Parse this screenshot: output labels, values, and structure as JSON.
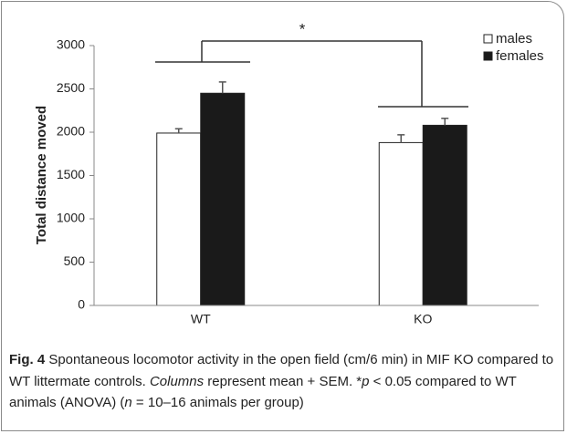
{
  "chart_data": {
    "type": "bar",
    "categories": [
      "WT",
      "KO"
    ],
    "series": [
      {
        "name": "males",
        "color": "#ffffff",
        "values": [
          1990,
          1880
        ],
        "errors": [
          50,
          90
        ]
      },
      {
        "name": "females",
        "color": "#1a1a1a",
        "values": [
          2450,
          2080
        ],
        "errors": [
          130,
          80
        ]
      }
    ],
    "ylabel": "Total distance moved",
    "ylim": [
      0,
      3000
    ],
    "yticks": [
      0,
      500,
      1000,
      1500,
      2000,
      2500,
      3000
    ],
    "annotation": "*",
    "legend": "upper right",
    "caption": [
      "Fig. 4",
      " Spontaneous locomotor activity in the open field (cm/6 min) in MIF KO compared to WT littermate controls. ",
      "Columns",
      " represent mean + SEM. *",
      "p",
      " < 0.05 compared to WT animals (ANOVA) (",
      "n",
      " = 10–16 animals per group)"
    ]
  }
}
